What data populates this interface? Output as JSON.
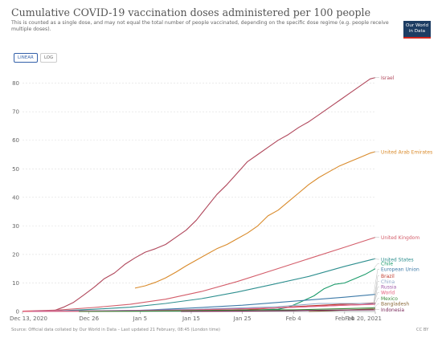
{
  "header": {
    "title": "Cumulative COVID-19 vaccination doses administered per 100 people",
    "subtitle": "This is counted as a single dose, and may not equal the total number of people vaccinated, depending on the specific dose regime (e.g. people receive multiple doses).",
    "logo_line1": "Our World",
    "logo_line2": "in Data"
  },
  "controls": {
    "linear_label": "LINEAR",
    "log_label": "LOG",
    "selected": "LINEAR"
  },
  "footer": {
    "source": "Source: Official data collated by Our World in Data – Last updated 21 February, 08:45 (London time)",
    "license": "CC BY"
  },
  "colors": {
    "grid": "#dddddd",
    "axis_text": "#666666"
  },
  "chart_data": {
    "type": "line",
    "title": "Cumulative COVID-19 vaccination doses administered per 100 people",
    "xlabel": "",
    "ylabel": "",
    "x_ticks": [
      "Dec 13, 2020",
      "Dec 26",
      "Jan 5",
      "Jan 15",
      "Jan 25",
      "Feb 4",
      "Feb 14",
      "Feb 20, 2021"
    ],
    "x_tick_days": [
      0,
      13,
      23,
      33,
      43,
      53,
      63,
      69
    ],
    "y_ticks": [
      0,
      10,
      20,
      30,
      40,
      50,
      60,
      70,
      80
    ],
    "ylim": [
      0,
      83
    ],
    "grid": true,
    "legend": "right-end labels",
    "series": [
      {
        "name": "Israel",
        "color": "#b0475b",
        "x": [
          "Dec 19",
          "Dec 21",
          "Dec 23",
          "Dec 25",
          "Dec 27",
          "Dec 29",
          "Dec 31",
          "Jan 2",
          "Jan 4",
          "Jan 6",
          "Jan 8",
          "Jan 10",
          "Jan 12",
          "Jan 14",
          "Jan 16",
          "Jan 18",
          "Jan 20",
          "Jan 22",
          "Jan 24",
          "Jan 26",
          "Jan 28",
          "Jan 30",
          "Feb 1",
          "Feb 3",
          "Feb 5",
          "Feb 7",
          "Feb 9",
          "Feb 11",
          "Feb 13",
          "Feb 15",
          "Feb 17",
          "Feb 19",
          "Feb 20"
        ],
        "values": [
          0.2,
          1.5,
          3.2,
          5.8,
          8.5,
          11.5,
          13.5,
          16.5,
          18.8,
          20.8,
          22.0,
          23.5,
          26.0,
          28.5,
          32.0,
          36.5,
          41.0,
          44.5,
          48.5,
          52.5,
          55.0,
          57.5,
          60.0,
          62.0,
          64.5,
          66.5,
          69.0,
          71.5,
          74.0,
          76.5,
          79.0,
          81.5,
          82.0
        ]
      },
      {
        "name": "United Arab Emirates",
        "color": "#d98a2a",
        "x": [
          "Jan 4",
          "Jan 6",
          "Jan 8",
          "Jan 10",
          "Jan 12",
          "Jan 14",
          "Jan 16",
          "Jan 18",
          "Jan 20",
          "Jan 22",
          "Jan 24",
          "Jan 26",
          "Jan 28",
          "Jan 30",
          "Feb 1",
          "Feb 3",
          "Feb 5",
          "Feb 7",
          "Feb 9",
          "Feb 11",
          "Feb 13",
          "Feb 15",
          "Feb 17",
          "Feb 19",
          "Feb 20"
        ],
        "values": [
          8.2,
          9.0,
          10.2,
          11.8,
          13.8,
          16.0,
          18.0,
          20.0,
          22.0,
          23.5,
          25.5,
          27.5,
          30.0,
          33.5,
          35.5,
          38.5,
          41.5,
          44.5,
          47.0,
          49.0,
          51.0,
          52.5,
          54.0,
          55.5,
          56.0
        ]
      },
      {
        "name": "United Kingdom",
        "color": "#d35d6a",
        "x": [
          "Dec 13",
          "Dec 20",
          "Dec 27",
          "Jan 3",
          "Jan 10",
          "Jan 17",
          "Jan 24",
          "Jan 31",
          "Feb 7",
          "Feb 14",
          "Feb 20"
        ],
        "values": [
          0.1,
          0.5,
          1.4,
          2.5,
          4.3,
          7.0,
          10.5,
          14.5,
          18.5,
          22.5,
          26.0
        ]
      },
      {
        "name": "United States",
        "color": "#2e8f8f",
        "x": [
          "Dec 20",
          "Dec 27",
          "Jan 3",
          "Jan 10",
          "Jan 17",
          "Jan 24",
          "Jan 31",
          "Feb 7",
          "Feb 14",
          "Feb 20"
        ],
        "values": [
          0.2,
          0.8,
          1.5,
          2.8,
          4.5,
          6.8,
          9.5,
          12.3,
          15.8,
          18.5
        ]
      },
      {
        "name": "Chile",
        "color": "#1a9a6a",
        "x": [
          "Jan 5",
          "Jan 15",
          "Jan 25",
          "Feb 1",
          "Feb 3",
          "Feb 5",
          "Feb 8",
          "Feb 10",
          "Feb 12",
          "Feb 14",
          "Feb 16",
          "Feb 18",
          "Feb 20"
        ],
        "values": [
          0.1,
          0.2,
          0.4,
          0.8,
          1.5,
          3.0,
          5.5,
          8.0,
          9.5,
          10.0,
          11.5,
          13.0,
          15.0
        ]
      },
      {
        "name": "European Union",
        "color": "#3d7aa8",
        "x": [
          "Dec 27",
          "Jan 5",
          "Jan 15",
          "Jan 25",
          "Feb 4",
          "Feb 14",
          "Feb 20"
        ],
        "values": [
          0.1,
          0.4,
          1.2,
          2.2,
          3.6,
          5.0,
          6.0
        ]
      },
      {
        "name": "Brazil",
        "color": "#c0392b",
        "x": [
          "Jan 17",
          "Jan 25",
          "Feb 4",
          "Feb 14",
          "Feb 20"
        ],
        "values": [
          0.1,
          0.5,
          1.7,
          2.6,
          3.0
        ]
      },
      {
        "name": "China",
        "color": "#8fa8c8",
        "x": [
          "Dec 15",
          "Dec 31",
          "Jan 15",
          "Feb 1",
          "Feb 9",
          "Feb 20"
        ],
        "values": [
          0.1,
          0.3,
          0.7,
          1.7,
          2.8,
          2.8
        ]
      },
      {
        "name": "Russia",
        "color": "#a15caa",
        "x": [
          "Dec 15",
          "Dec 31",
          "Jan 15",
          "Jan 31",
          "Feb 14",
          "Feb 20"
        ],
        "values": [
          0.1,
          0.3,
          0.6,
          1.2,
          2.2,
          2.6
        ]
      },
      {
        "name": "World",
        "color": "#e4607e",
        "x": [
          "Dec 13",
          "Dec 26",
          "Jan 5",
          "Jan 15",
          "Jan 25",
          "Feb 4",
          "Feb 14",
          "Feb 20"
        ],
        "values": [
          0.0,
          0.1,
          0.2,
          0.5,
          0.9,
          1.5,
          2.2,
          2.5
        ]
      },
      {
        "name": "Mexico",
        "color": "#3b8a3b",
        "x": [
          "Dec 24",
          "Jan 5",
          "Jan 15",
          "Jan 25",
          "Feb 4",
          "Feb 14",
          "Feb 20"
        ],
        "values": [
          0.0,
          0.1,
          0.3,
          0.5,
          0.6,
          1.0,
          1.3
        ]
      },
      {
        "name": "Bangladesh",
        "color": "#8a6a3a",
        "x": [
          "Feb 7",
          "Feb 10",
          "Feb 14",
          "Feb 20"
        ],
        "values": [
          0.0,
          0.2,
          0.5,
          0.9
        ]
      },
      {
        "name": "Indonesia",
        "color": "#7a2a5a",
        "x": [
          "Jan 13",
          "Jan 25",
          "Feb 4",
          "Feb 14",
          "Feb 20"
        ],
        "values": [
          0.0,
          0.1,
          0.3,
          0.5,
          0.6
        ]
      }
    ],
    "label_values": [
      82,
      56,
      26,
      18.3,
      16.8,
      14.8,
      12.5,
      10.5,
      8.6,
      6.7,
      4.6,
      2.7,
      0.7
    ]
  }
}
